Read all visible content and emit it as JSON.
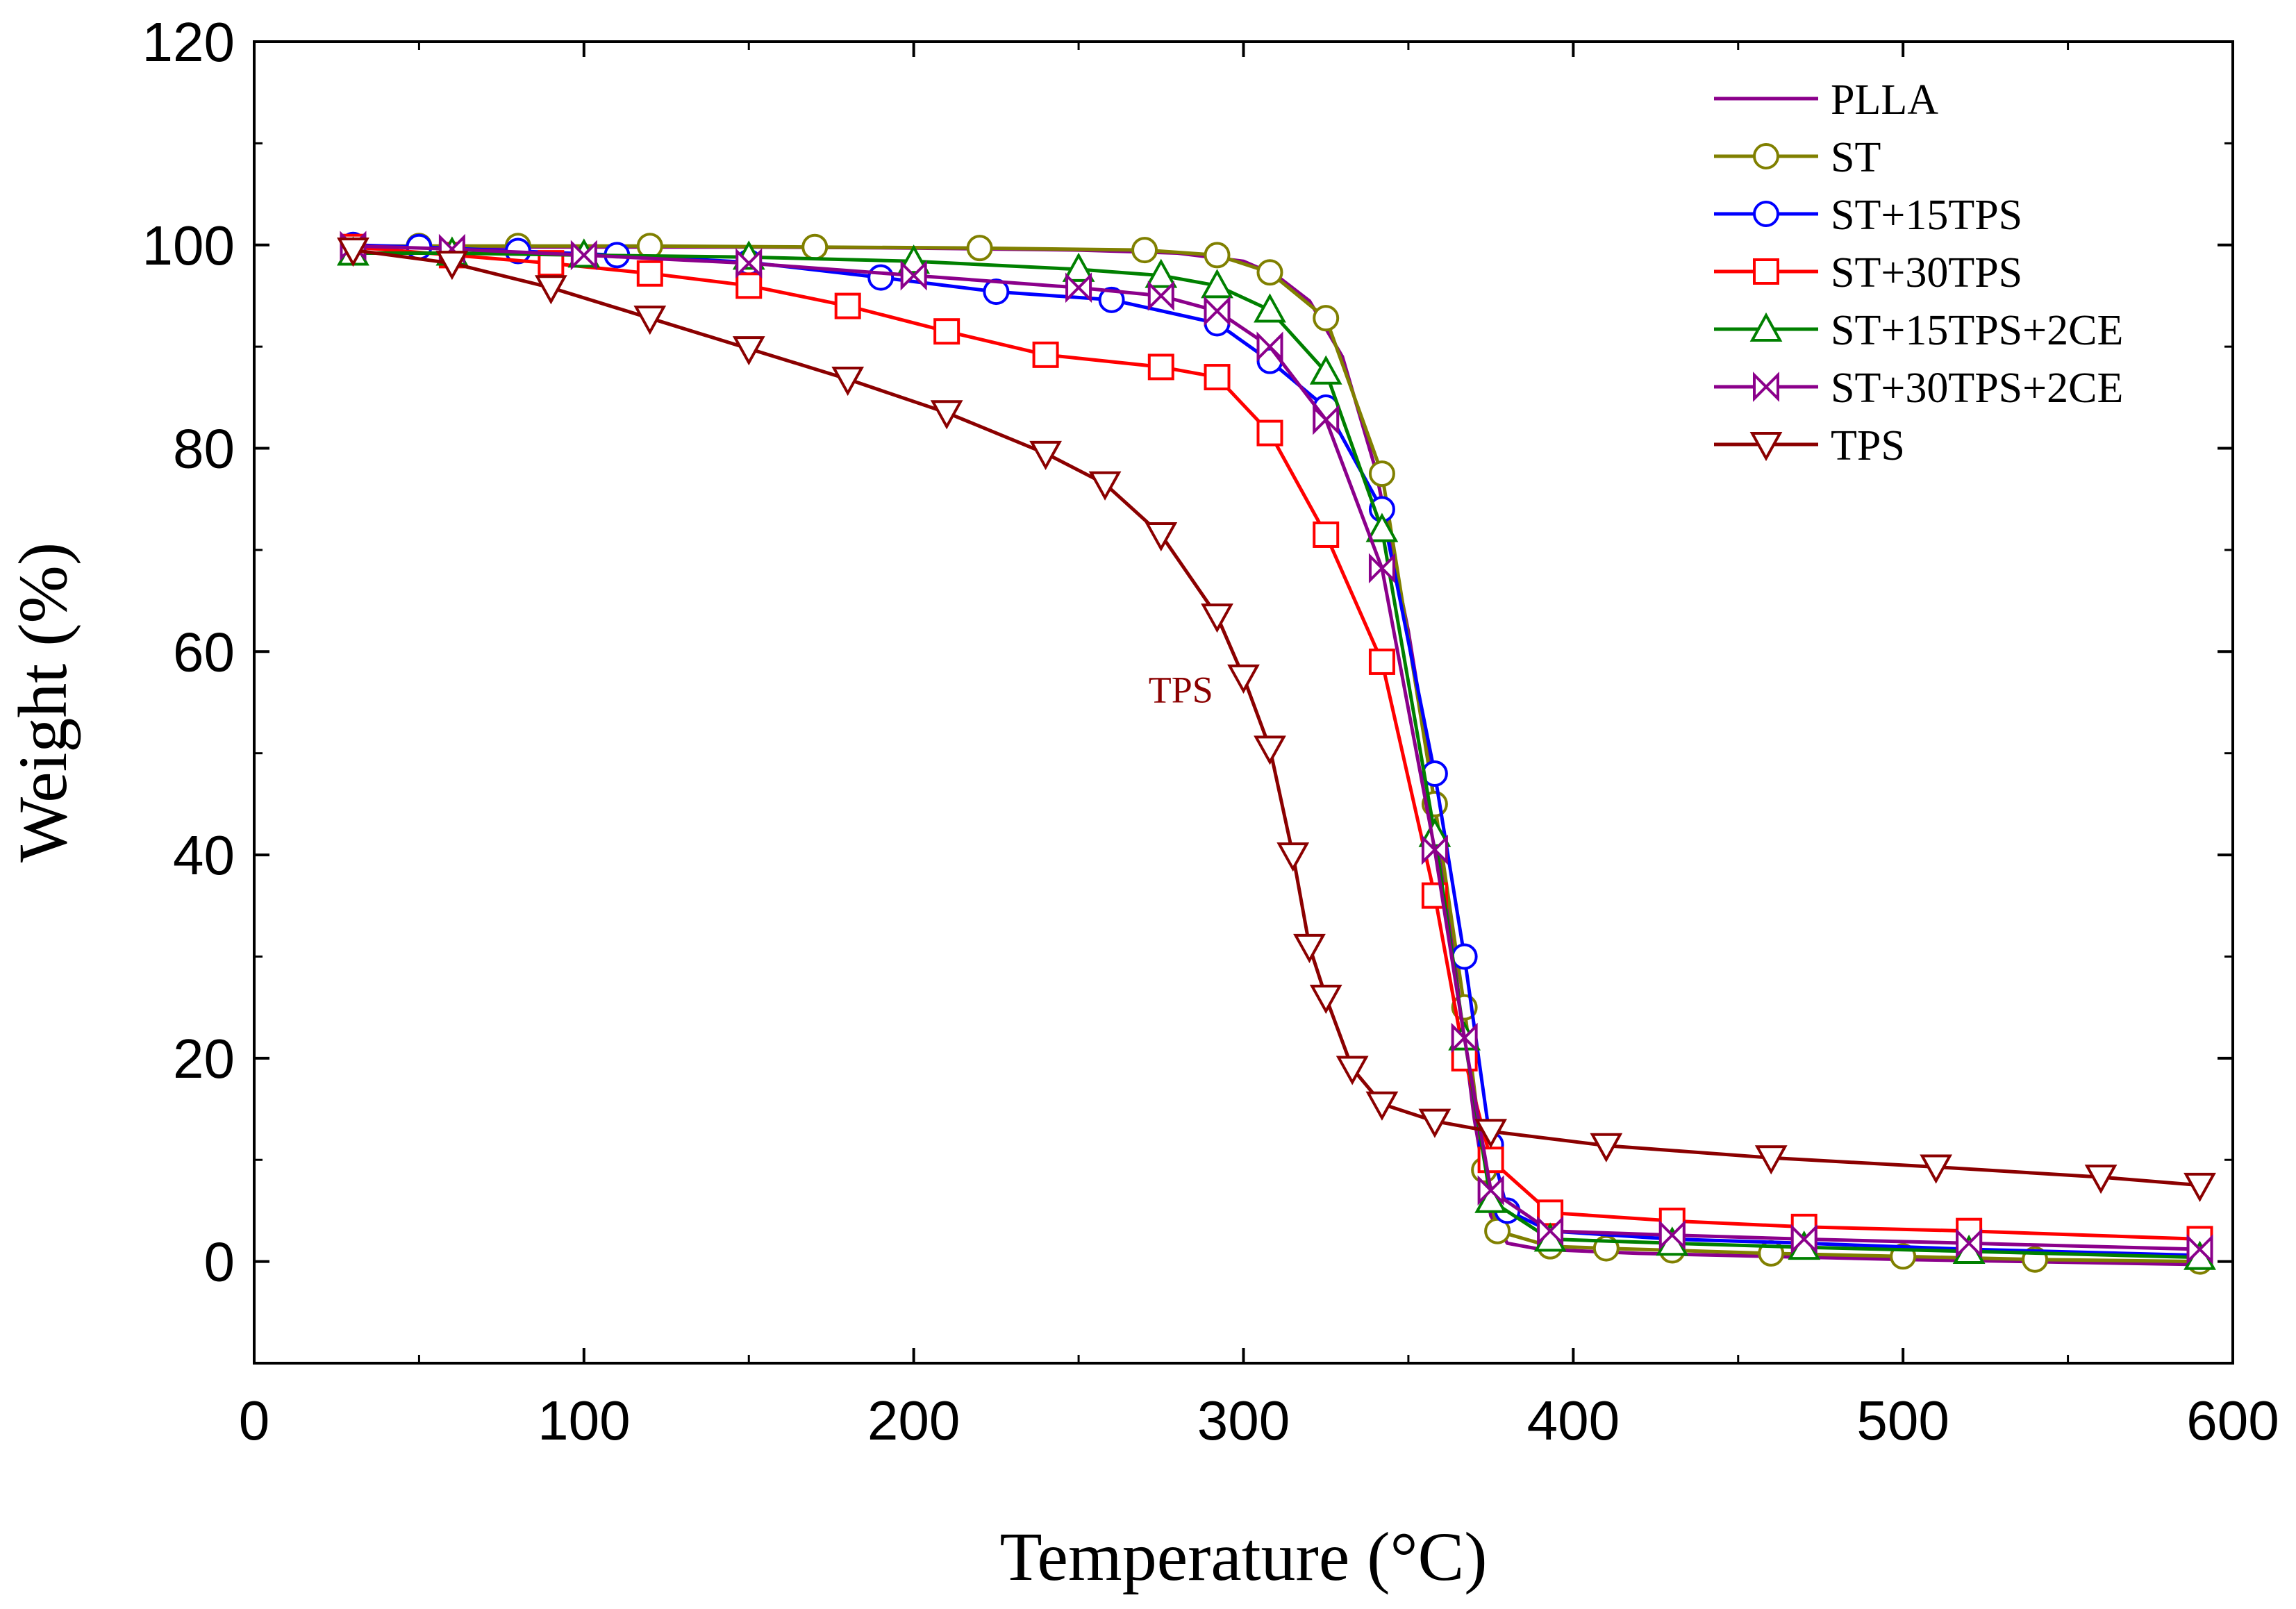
{
  "chart_data": {
    "type": "line",
    "title": "",
    "xlabel": "Temperature (°C)",
    "ylabel": "Weight (%)",
    "xlim": [
      0,
      600
    ],
    "ylim": [
      -10,
      120
    ],
    "xticks": [
      0,
      100,
      200,
      300,
      400,
      500,
      600
    ],
    "yticks": [
      0,
      20,
      40,
      60,
      80,
      100,
      120
    ],
    "grid": false,
    "legend_position": "top-right",
    "annotations": [
      {
        "text": "TPS",
        "x": 281,
        "y": 55,
        "color": "#8b0000"
      }
    ],
    "series": [
      {
        "name": "PLLA",
        "color": "#8b008b",
        "marker": "none",
        "x": [
          30,
          60,
          100,
          150,
          200,
          250,
          280,
          300,
          310,
          320,
          330,
          340,
          350,
          355,
          360,
          365,
          370,
          375,
          380,
          390,
          420,
          500,
          590
        ],
        "y": [
          99.8,
          99.8,
          99.8,
          99.8,
          99.7,
          99.5,
          99.2,
          98.4,
          97.0,
          94.5,
          89.0,
          78.0,
          62.0,
          52.0,
          40.0,
          27.0,
          14.0,
          4.5,
          1.8,
          1.2,
          0.8,
          0.2,
          -0.3
        ]
      },
      {
        "name": "ST",
        "color": "#808000",
        "marker": "circle",
        "x": [
          30,
          50,
          80,
          120,
          170,
          220,
          270,
          292,
          308,
          325,
          342,
          358,
          367,
          373,
          377,
          393,
          410,
          430,
          460,
          500,
          540,
          590
        ],
        "y": [
          99.9,
          99.9,
          99.9,
          99.9,
          99.8,
          99.7,
          99.5,
          99.0,
          97.3,
          92.8,
          77.5,
          45.0,
          25.0,
          9.0,
          3.0,
          1.5,
          1.3,
          1.1,
          0.8,
          0.5,
          0.2,
          0.0
        ]
      },
      {
        "name": "ST+15TPS",
        "color": "#0000ff",
        "marker": "circle",
        "x": [
          30,
          50,
          80,
          110,
          150,
          190,
          225,
          260,
          292,
          308,
          325,
          342,
          358,
          367,
          375,
          380,
          393,
          430,
          470,
          520,
          590
        ],
        "y": [
          100.0,
          99.8,
          99.4,
          99.0,
          98.3,
          96.8,
          95.4,
          94.6,
          92.3,
          88.6,
          84.0,
          74.0,
          48.0,
          30.0,
          11.5,
          5.0,
          3.0,
          2.2,
          1.8,
          1.2,
          0.6
        ]
      },
      {
        "name": "ST+30TPS",
        "color": "#ff0000",
        "marker": "square",
        "x": [
          30,
          60,
          90,
          120,
          150,
          180,
          210,
          240,
          275,
          292,
          308,
          325,
          342,
          358,
          367,
          375,
          393,
          430,
          470,
          520,
          590
        ],
        "y": [
          99.8,
          99.0,
          98.2,
          97.2,
          96.0,
          94.0,
          91.5,
          89.2,
          88.0,
          87.0,
          81.5,
          71.5,
          59.0,
          36.0,
          20.0,
          10.0,
          4.8,
          4.0,
          3.4,
          3.0,
          2.2
        ]
      },
      {
        "name": "ST+15TPS+2CE",
        "color": "#008000",
        "marker": "triangle-up",
        "x": [
          30,
          60,
          100,
          150,
          200,
          250,
          275,
          292,
          308,
          325,
          342,
          358,
          367,
          375,
          393,
          430,
          470,
          520,
          590
        ],
        "y": [
          99.2,
          99.2,
          99.0,
          98.8,
          98.4,
          97.6,
          97.0,
          96.0,
          93.6,
          87.5,
          72.0,
          42.0,
          22.0,
          6.0,
          2.2,
          1.8,
          1.4,
          1.0,
          0.4
        ]
      },
      {
        "name": "ST+30TPS+2CE",
        "color": "#8b008b",
        "marker": "bowtie",
        "x": [
          30,
          60,
          100,
          150,
          200,
          250,
          275,
          292,
          308,
          325,
          342,
          358,
          367,
          375,
          393,
          430,
          470,
          520,
          590
        ],
        "y": [
          99.9,
          99.6,
          99.0,
          98.2,
          97.0,
          95.8,
          95.0,
          93.5,
          90.0,
          82.8,
          68.2,
          40.5,
          22.0,
          7.0,
          3.0,
          2.6,
          2.2,
          1.8,
          1.2
        ]
      },
      {
        "name": "TPS",
        "color": "#8b0000",
        "marker": "triangle-down",
        "x": [
          30,
          60,
          90,
          120,
          150,
          180,
          210,
          240,
          258,
          275,
          292,
          300,
          308,
          315,
          320,
          325,
          333,
          342,
          358,
          375,
          410,
          460,
          510,
          560,
          590
        ],
        "y": [
          99.5,
          98.2,
          95.8,
          92.8,
          89.8,
          86.8,
          83.5,
          79.5,
          76.5,
          71.5,
          63.5,
          57.5,
          50.5,
          40.0,
          31.0,
          26.0,
          19.0,
          15.5,
          13.8,
          12.8,
          11.4,
          10.2,
          9.3,
          8.3,
          7.5
        ]
      }
    ]
  }
}
